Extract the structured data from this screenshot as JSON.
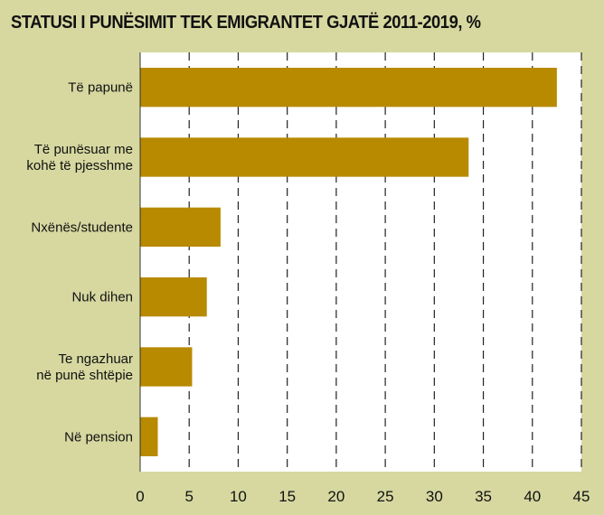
{
  "chart_data": {
    "type": "bar",
    "orientation": "horizontal",
    "title": "STATUSI I PUNËSIMIT TEK EMIGRANTET GJATË 2011-2019, %",
    "categories": [
      [
        "Të papunë"
      ],
      [
        "Të punësuar me",
        "kohë të pjesshme"
      ],
      [
        "Nxënës/studente"
      ],
      [
        "Nuk dihen"
      ],
      [
        "Te ngazhuar",
        "në punë shtëpie"
      ],
      [
        "Në pension"
      ]
    ],
    "values": [
      42.5,
      33.5,
      8.2,
      6.8,
      5.3,
      1.8
    ],
    "xlim": [
      0,
      45
    ],
    "xticks": [
      "0",
      "5",
      "10",
      "15",
      "20",
      "25",
      "30",
      "35",
      "40",
      "45"
    ],
    "grid": true,
    "bar_color": "#b88a00",
    "background": "#d6d8a0",
    "plot_background": "#ffffff"
  }
}
